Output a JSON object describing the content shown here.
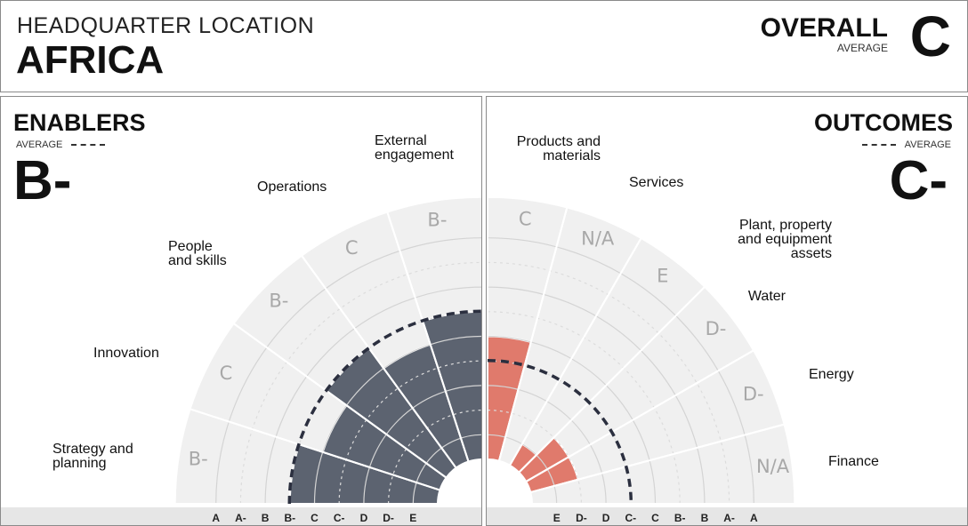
{
  "header": {
    "hq_label": "HEADQUARTER LOCATION",
    "hq_value": "AFRICA",
    "overall_label": "OVERALL",
    "overall_sub": "AVERAGE",
    "overall_grade": "C"
  },
  "colors": {
    "enablers_fill": "#5c6370",
    "outcomes_fill": "#e07a6c",
    "sector_bg": "#f0f0f0",
    "avg_line": "#2b2f3f"
  },
  "chart_data": [
    {
      "type": "polar-bar",
      "title": "ENABLERS",
      "avg_label": "AVERAGE",
      "avg_grade": "B-",
      "grade_scale": [
        "A",
        "A-",
        "B",
        "B-",
        "C",
        "C-",
        "D",
        "D-",
        "E"
      ],
      "avg_value": "B-",
      "categories": [
        "Strategy and planning",
        "Innovation",
        "People and skills",
        "Operations",
        "External engagement"
      ],
      "values": [
        "B-",
        "C",
        "B-",
        "C",
        "B-"
      ],
      "grade_labels": [
        "B-",
        "C",
        "B-",
        "C",
        "B-"
      ]
    },
    {
      "type": "polar-bar",
      "title": "OUTCOMES",
      "avg_label": "AVERAGE",
      "avg_grade": "C-",
      "grade_scale": [
        "E",
        "D-",
        "D",
        "C-",
        "C",
        "B-",
        "B",
        "A-",
        "A"
      ],
      "avg_value": "C-",
      "categories": [
        "Products and materials",
        "Services",
        "Plant, property and equipment assets",
        "Water",
        "Energy",
        "Finance"
      ],
      "values": [
        "C",
        "N/A",
        "E",
        "D-",
        "D-",
        "N/A"
      ],
      "grade_labels": [
        "C",
        "N/A",
        "E",
        "D-",
        "D-",
        "N/A"
      ]
    }
  ]
}
